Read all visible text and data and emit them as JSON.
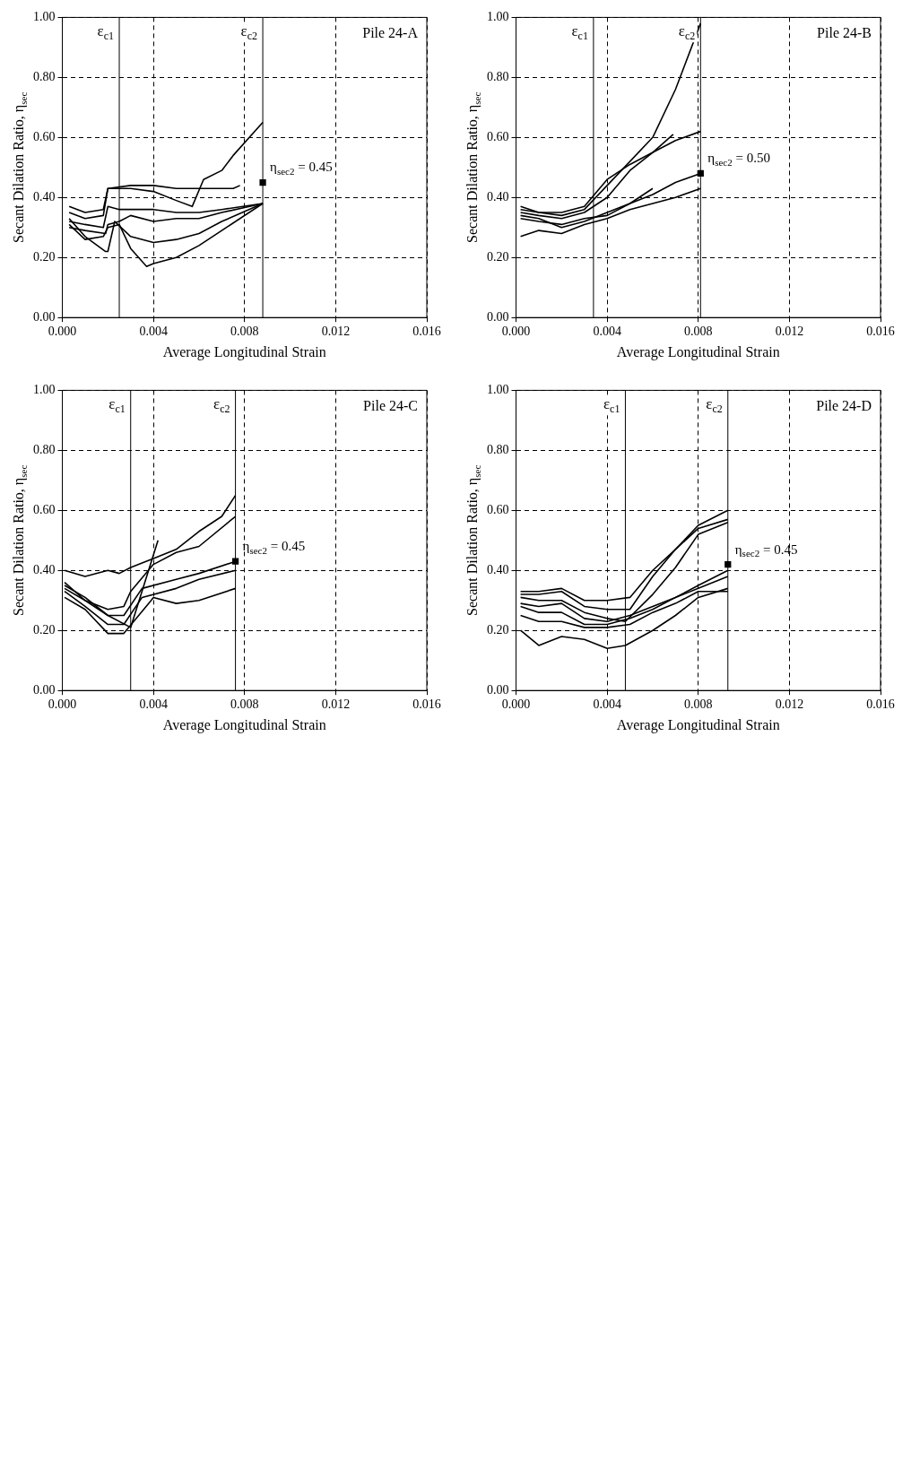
{
  "chart_data": [
    {
      "type": "line",
      "title": null,
      "xlabel": "Average Longitudinal Strain",
      "ylabel": "Secant Dilation Ratio, η$_{sec}$",
      "xlim": [
        0,
        0.016
      ],
      "ylim": [
        0,
        1
      ],
      "xticks": [
        {
          "value": 0,
          "label": "0.000"
        },
        {
          "value": 0.004,
          "label": "0.004"
        },
        {
          "value": 0.008,
          "label": "0.008"
        },
        {
          "value": 0.012,
          "label": "0.012"
        },
        {
          "value": 0.016,
          "label": "0.016"
        }
      ],
      "yticks": [
        {
          "value": 0,
          "label": "0.00"
        },
        {
          "value": 0.2,
          "label": "0.20"
        },
        {
          "value": 0.4,
          "label": "0.40"
        },
        {
          "value": 0.6,
          "label": "0.60"
        },
        {
          "value": 0.8,
          "label": "0.80"
        },
        {
          "value": 1,
          "label": "1.00"
        }
      ],
      "grid": true,
      "marker": "none",
      "legend": false,
      "series": [
        {
          "type": "line",
          "color": "#000000",
          "x": [
            0.0003,
            0.001,
            0.0018,
            0.002,
            0.003,
            0.004,
            0.005,
            0.0057,
            0.0062,
            0.007,
            0.0075,
            0.0088
          ],
          "values": [
            0.37,
            0.35,
            0.36,
            0.43,
            0.43,
            0.42,
            0.39,
            0.37,
            0.46,
            0.49,
            0.54,
            0.65
          ]
        },
        {
          "type": "line",
          "color": "#000000",
          "x": [
            0.0003,
            0.001,
            0.0018,
            0.002,
            0.003,
            0.004,
            0.005,
            0.006,
            0.0075,
            0.0078
          ],
          "values": [
            0.35,
            0.33,
            0.34,
            0.43,
            0.44,
            0.44,
            0.43,
            0.43,
            0.43,
            0.44
          ]
        },
        {
          "type": "line",
          "color": "#000000",
          "x": [
            0.0003,
            0.001,
            0.0018,
            0.002,
            0.0025,
            0.003,
            0.004,
            0.005,
            0.006,
            0.007,
            0.0088
          ],
          "values": [
            0.32,
            0.31,
            0.3,
            0.37,
            0.36,
            0.36,
            0.36,
            0.35,
            0.35,
            0.36,
            0.38
          ]
        },
        {
          "type": "line",
          "color": "#000000",
          "x": [
            0.0003,
            0.001,
            0.0019,
            0.002,
            0.0025,
            0.003,
            0.004,
            0.005,
            0.006,
            0.007,
            0.0088
          ],
          "values": [
            0.3,
            0.29,
            0.28,
            0.31,
            0.32,
            0.34,
            0.32,
            0.33,
            0.33,
            0.35,
            0.38
          ]
        },
        {
          "type": "line",
          "color": "#000000",
          "x": [
            0.0003,
            0.001,
            0.0019,
            0.002,
            0.0023,
            0.003,
            0.004,
            0.005,
            0.006,
            0.007,
            0.0088
          ],
          "values": [
            0.33,
            0.27,
            0.22,
            0.22,
            0.32,
            0.27,
            0.25,
            0.26,
            0.28,
            0.32,
            0.38
          ]
        },
        {
          "type": "line",
          "color": "#000000",
          "x": [
            0.0003,
            0.001,
            0.0018,
            0.002,
            0.0025,
            0.003,
            0.0037,
            0.004,
            0.005,
            0.006,
            0.007,
            0.0088
          ],
          "values": [
            0.31,
            0.26,
            0.27,
            0.3,
            0.31,
            0.23,
            0.17,
            0.18,
            0.2,
            0.24,
            0.29,
            0.38
          ]
        },
        {
          "type": "scatter",
          "marker": "square",
          "color": "#000000",
          "x": [
            0.0088
          ],
          "values": [
            0.45
          ]
        }
      ],
      "ref_lines": [
        {
          "axis": "x",
          "value": 0.0025,
          "label": "ε$_{c1}$",
          "color": "#000000"
        },
        {
          "axis": "x",
          "value": 0.0088,
          "label": "ε$_{c2}$",
          "color": "#000000"
        }
      ],
      "annotations": [
        "Pile 24-A",
        {
          "text": "η$_{sec2}$ = 0.45",
          "x": 0.0088,
          "y": 0.45
        }
      ]
    },
    {
      "type": "line",
      "title": null,
      "xlabel": "Average Longitudinal Strain",
      "ylabel": "Secant Dilation Ratio, η$_{sec}$",
      "xlim": [
        0,
        0.016
      ],
      "ylim": [
        0,
        1
      ],
      "xticks": [
        {
          "value": 0,
          "label": "0.000"
        },
        {
          "value": 0.004,
          "label": "0.004"
        },
        {
          "value": 0.008,
          "label": "0.008"
        },
        {
          "value": 0.012,
          "label": "0.012"
        },
        {
          "value": 0.016,
          "label": "0.016"
        }
      ],
      "yticks": [
        {
          "value": 0,
          "label": "0.00"
        },
        {
          "value": 0.2,
          "label": "0.20"
        },
        {
          "value": 0.4,
          "label": "0.40"
        },
        {
          "value": 0.6,
          "label": "0.60"
        },
        {
          "value": 0.8,
          "label": "0.80"
        },
        {
          "value": 1,
          "label": "1.00"
        }
      ],
      "grid": true,
      "marker": "none",
      "legend": false,
      "series": [
        {
          "type": "line",
          "color": "#000000",
          "x": [
            0.0002,
            0.001,
            0.002,
            0.003,
            0.004,
            0.005,
            0.006,
            0.007,
            0.0081
          ],
          "values": [
            0.37,
            0.35,
            0.34,
            0.36,
            0.44,
            0.52,
            0.6,
            0.76,
            0.98
          ]
        },
        {
          "type": "line",
          "color": "#000000",
          "x": [
            0.0002,
            0.001,
            0.002,
            0.003,
            0.004,
            0.005,
            0.006,
            0.007,
            0.0081
          ],
          "values": [
            0.36,
            0.35,
            0.35,
            0.37,
            0.46,
            0.51,
            0.55,
            0.59,
            0.62
          ]
        },
        {
          "type": "line",
          "color": "#000000",
          "x": [
            0.0002,
            0.001,
            0.002,
            0.003,
            0.004,
            0.005,
            0.006,
            0.0069
          ],
          "values": [
            0.35,
            0.34,
            0.33,
            0.35,
            0.4,
            0.49,
            0.55,
            0.61
          ]
        },
        {
          "type": "line",
          "color": "#000000",
          "x": [
            0.0002,
            0.001,
            0.002,
            0.003,
            0.004,
            0.005,
            0.006,
            0.007,
            0.0081
          ],
          "values": [
            0.34,
            0.33,
            0.3,
            0.32,
            0.35,
            0.38,
            0.41,
            0.45,
            0.48
          ]
        },
        {
          "type": "line",
          "color": "#000000",
          "x": [
            0.0002,
            0.001,
            0.002,
            0.003,
            0.004,
            0.005,
            0.006
          ],
          "values": [
            0.33,
            0.32,
            0.31,
            0.33,
            0.34,
            0.38,
            0.43
          ]
        },
        {
          "type": "line",
          "color": "#000000",
          "x": [
            0.0002,
            0.001,
            0.002,
            0.003,
            0.004,
            0.005,
            0.006,
            0.007,
            0.0081
          ],
          "values": [
            0.27,
            0.29,
            0.28,
            0.31,
            0.33,
            0.36,
            0.38,
            0.4,
            0.43
          ]
        },
        {
          "type": "scatter",
          "marker": "square",
          "color": "#000000",
          "x": [
            0.0081
          ],
          "values": [
            0.48
          ]
        }
      ],
      "ref_lines": [
        {
          "axis": "x",
          "value": 0.0034,
          "label": "ε$_{c1}$",
          "color": "#000000"
        },
        {
          "axis": "x",
          "value": 0.0081,
          "label": "ε$_{c2}$",
          "color": "#000000"
        }
      ],
      "annotations": [
        "Pile 24-B",
        {
          "text": "η$_{sec2}$ = 0.50",
          "x": 0.0081,
          "y": 0.48
        }
      ]
    },
    {
      "type": "line",
      "title": null,
      "xlabel": "Average Longitudinal Strain",
      "ylabel": "Secant Dilation Ratio, η$_{sec}$",
      "xlim": [
        0,
        0.016
      ],
      "ylim": [
        0,
        1
      ],
      "xticks": [
        {
          "value": 0,
          "label": "0.000"
        },
        {
          "value": 0.004,
          "label": "0.004"
        },
        {
          "value": 0.008,
          "label": "0.008"
        },
        {
          "value": 0.012,
          "label": "0.012"
        },
        {
          "value": 0.016,
          "label": "0.016"
        }
      ],
      "yticks": [
        {
          "value": 0,
          "label": "0.00"
        },
        {
          "value": 0.2,
          "label": "0.20"
        },
        {
          "value": 0.4,
          "label": "0.40"
        },
        {
          "value": 0.6,
          "label": "0.60"
        },
        {
          "value": 0.8,
          "label": "0.80"
        },
        {
          "value": 1,
          "label": "1.00"
        }
      ],
      "grid": true,
      "marker": "none",
      "legend": false,
      "series": [
        {
          "type": "line",
          "color": "#000000",
          "x": [
            0.0001,
            0.001,
            0.002,
            0.0025,
            0.003,
            0.004,
            0.005,
            0.006,
            0.007,
            0.0076
          ],
          "values": [
            0.4,
            0.38,
            0.4,
            0.39,
            0.41,
            0.44,
            0.47,
            0.53,
            0.58,
            0.65
          ]
        },
        {
          "type": "line",
          "color": "#000000",
          "x": [
            0.0001,
            0.001,
            0.002,
            0.0027,
            0.003,
            0.004,
            0.005,
            0.006,
            0.0076
          ],
          "values": [
            0.36,
            0.3,
            0.27,
            0.28,
            0.33,
            0.42,
            0.46,
            0.48,
            0.58
          ]
        },
        {
          "type": "line",
          "color": "#000000",
          "x": [
            0.0001,
            0.001,
            0.002,
            0.003,
            0.0042
          ],
          "values": [
            0.35,
            0.31,
            0.25,
            0.21,
            0.5
          ]
        },
        {
          "type": "line",
          "color": "#000000",
          "x": [
            0.0001,
            0.001,
            0.002,
            0.0027,
            0.0035,
            0.005,
            0.006,
            0.0076
          ],
          "values": [
            0.34,
            0.3,
            0.25,
            0.25,
            0.34,
            0.37,
            0.39,
            0.43
          ]
        },
        {
          "type": "line",
          "color": "#000000",
          "x": [
            0.0001,
            0.001,
            0.002,
            0.0027,
            0.0035,
            0.005,
            0.006,
            0.0076
          ],
          "values": [
            0.33,
            0.28,
            0.22,
            0.22,
            0.31,
            0.34,
            0.37,
            0.4
          ]
        },
        {
          "type": "line",
          "color": "#000000",
          "x": [
            0.0001,
            0.001,
            0.002,
            0.0027,
            0.0039,
            0.004,
            0.005,
            0.006,
            0.0076
          ],
          "values": [
            0.31,
            0.27,
            0.19,
            0.19,
            0.3,
            0.31,
            0.29,
            0.3,
            0.34
          ]
        },
        {
          "type": "scatter",
          "marker": "square",
          "color": "#000000",
          "x": [
            0.0076
          ],
          "values": [
            0.43
          ]
        }
      ],
      "ref_lines": [
        {
          "axis": "x",
          "value": 0.003,
          "label": "ε$_{c1}$",
          "color": "#000000"
        },
        {
          "axis": "x",
          "value": 0.0076,
          "label": "ε$_{c2}$",
          "color": "#000000"
        }
      ],
      "annotations": [
        "Pile 24-C",
        {
          "text": "η$_{sec2}$ = 0.45",
          "x": 0.0076,
          "y": 0.43
        }
      ]
    },
    {
      "type": "line",
      "title": null,
      "xlabel": "Average Longitudinal Strain",
      "ylabel": "Secant Dilation Ratio, η$_{sec}$",
      "xlim": [
        0,
        0.016
      ],
      "ylim": [
        0,
        1
      ],
      "xticks": [
        {
          "value": 0,
          "label": "0.000"
        },
        {
          "value": 0.004,
          "label": "0.004"
        },
        {
          "value": 0.008,
          "label": "0.008"
        },
        {
          "value": 0.012,
          "label": "0.012"
        },
        {
          "value": 0.016,
          "label": "0.016"
        }
      ],
      "yticks": [
        {
          "value": 0,
          "label": "0.00"
        },
        {
          "value": 0.2,
          "label": "0.20"
        },
        {
          "value": 0.4,
          "label": "0.40"
        },
        {
          "value": 0.6,
          "label": "0.60"
        },
        {
          "value": 0.8,
          "label": "0.80"
        },
        {
          "value": 1,
          "label": "1.00"
        }
      ],
      "grid": true,
      "marker": "none",
      "legend": false,
      "series": [
        {
          "type": "line",
          "color": "#000000",
          "x": [
            0.0002,
            0.001,
            0.002,
            0.003,
            0.004,
            0.005,
            0.006,
            0.007,
            0.008,
            0.0093
          ],
          "values": [
            0.33,
            0.33,
            0.34,
            0.3,
            0.3,
            0.31,
            0.4,
            0.47,
            0.55,
            0.6
          ]
        },
        {
          "type": "line",
          "color": "#000000",
          "x": [
            0.0002,
            0.001,
            0.002,
            0.003,
            0.004,
            0.005,
            0.006,
            0.007,
            0.008,
            0.0093
          ],
          "values": [
            0.32,
            0.32,
            0.33,
            0.28,
            0.27,
            0.27,
            0.38,
            0.47,
            0.54,
            0.57
          ]
        },
        {
          "type": "line",
          "color": "#000000",
          "x": [
            0.0002,
            0.001,
            0.002,
            0.003,
            0.004,
            0.0048,
            0.006,
            0.007,
            0.008,
            0.0093
          ],
          "values": [
            0.31,
            0.3,
            0.3,
            0.26,
            0.24,
            0.23,
            0.32,
            0.41,
            0.52,
            0.56
          ]
        },
        {
          "type": "line",
          "color": "#000000",
          "x": [
            0.0002,
            0.001,
            0.002,
            0.003,
            0.004,
            0.005,
            0.006,
            0.007,
            0.008,
            0.0093
          ],
          "values": [
            0.29,
            0.28,
            0.29,
            0.24,
            0.23,
            0.25,
            0.28,
            0.31,
            0.35,
            0.4
          ]
        },
        {
          "type": "line",
          "color": "#000000",
          "x": [
            0.0002,
            0.001,
            0.002,
            0.003,
            0.004,
            0.005,
            0.006,
            0.007,
            0.008,
            0.0093
          ],
          "values": [
            0.28,
            0.26,
            0.26,
            0.22,
            0.22,
            0.24,
            0.27,
            0.31,
            0.34,
            0.38
          ]
        },
        {
          "type": "line",
          "color": "#000000",
          "x": [
            0.0002,
            0.001,
            0.002,
            0.003,
            0.004,
            0.005,
            0.006,
            0.007,
            0.008,
            0.0093
          ],
          "values": [
            0.25,
            0.23,
            0.23,
            0.21,
            0.21,
            0.22,
            0.26,
            0.29,
            0.33,
            0.33
          ]
        },
        {
          "type": "line",
          "color": "#000000",
          "x": [
            0.0002,
            0.001,
            0.002,
            0.003,
            0.004,
            0.0048,
            0.006,
            0.007,
            0.008,
            0.0093
          ],
          "values": [
            0.2,
            0.15,
            0.18,
            0.17,
            0.14,
            0.15,
            0.2,
            0.25,
            0.31,
            0.34
          ]
        },
        {
          "type": "scatter",
          "marker": "square",
          "color": "#000000",
          "x": [
            0.0093
          ],
          "values": [
            0.42
          ]
        }
      ],
      "ref_lines": [
        {
          "axis": "x",
          "value": 0.0048,
          "label": "ε$_{c1}$",
          "color": "#000000"
        },
        {
          "axis": "x",
          "value": 0.0093,
          "label": "ε$_{c2}$",
          "color": "#000000"
        }
      ],
      "annotations": [
        "Pile 24-D",
        {
          "text": "η$_{sec2}$ = 0.45",
          "x": 0.0093,
          "y": 0.42
        }
      ]
    }
  ]
}
